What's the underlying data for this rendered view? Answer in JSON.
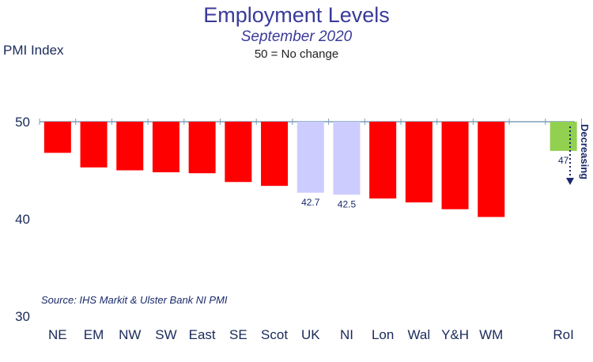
{
  "chart_data": {
    "type": "bar",
    "title": "Employment Levels",
    "subtitle": "September 2020",
    "note": "50 = No change",
    "ylabel": "PMI Index",
    "source": "Source: IHS Markit & Ulster Bank NI PMI",
    "baseline": 50,
    "ylim": [
      30,
      55
    ],
    "yticks": [
      30,
      40,
      50
    ],
    "grid": false,
    "categories": [
      "NE",
      "EM",
      "NW",
      "SW",
      "East",
      "SE",
      "Scot",
      "UK",
      "NI",
      "Lon",
      "Wal",
      "Y&H",
      "WM",
      "",
      "RoI"
    ],
    "values": [
      46.8,
      45.3,
      45.0,
      44.8,
      44.7,
      43.8,
      43.4,
      42.7,
      42.5,
      42.1,
      41.7,
      41.0,
      40.2,
      null,
      47
    ],
    "data_labels": [
      "",
      "",
      "",
      "",
      "",
      "",
      "",
      "42.7",
      "42.5",
      "",
      "",
      "",
      "",
      "",
      "47"
    ],
    "annotation": "Decreasing",
    "colors": {
      "regions": "#ff0000",
      "uk_ni": "#ccccff",
      "roi": "#92d050",
      "axis": "#7f9db9"
    },
    "bar_colors": [
      "#ff0000",
      "#ff0000",
      "#ff0000",
      "#ff0000",
      "#ff0000",
      "#ff0000",
      "#ff0000",
      "#ccccff",
      "#ccccff",
      "#ff0000",
      "#ff0000",
      "#ff0000",
      "#ff0000",
      "",
      "#92d050"
    ]
  }
}
